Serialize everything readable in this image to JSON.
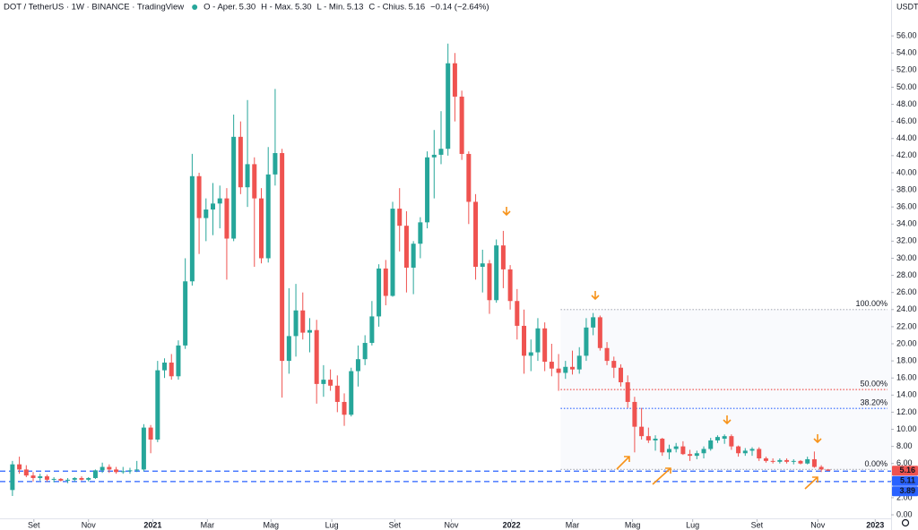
{
  "header": {
    "symbol": "DOT / TetherUS · 1W · BINANCE · TradingView",
    "legend": [
      {
        "label": "O - Aper.",
        "value": "5.30"
      },
      {
        "label": "H - Max.",
        "value": "5.30"
      },
      {
        "label": "L - Min.",
        "value": "5.13"
      },
      {
        "label": "C - Chius.",
        "value": "5.16"
      }
    ],
    "change": "−0.14 (−2.64%)"
  },
  "chart_data": {
    "type": "candlestick",
    "up_color": "#26a69a",
    "down_color": "#ef5350",
    "grid": false,
    "y_unit": "USDT",
    "open": [
      2.9,
      5.9,
      5.3,
      4.6,
      4.3,
      4.5,
      4.1,
      4.2,
      4.0,
      4.1,
      4.3,
      4.1,
      4.3,
      5.2,
      5.6,
      5.3,
      5.0,
      5.1,
      5.2,
      5.3,
      10.2,
      8.8,
      16.9,
      17.8,
      16.2,
      19.8,
      27.3,
      39.6,
      34.7,
      35.7,
      36.4,
      37.0,
      32.3,
      44.2,
      38.3,
      41.0,
      37.0,
      30.0,
      39.8,
      42.3,
      18.0,
      20.9,
      23.9,
      21.3,
      21.6,
      15.3,
      15.8,
      15.1,
      13.2,
      11.7,
      16.8,
      18.2,
      20.1,
      23.2,
      28.8,
      25.6,
      35.8,
      33.8,
      28.9,
      31.7,
      34.2,
      41.8,
      42.1,
      42.8,
      52.8,
      48.9,
      42.2,
      36.6,
      29.0,
      29.4,
      25.1,
      31.5,
      28.7,
      25.0,
      22.1,
      18.6,
      19.0,
      21.8,
      17.9,
      17.1,
      16.6,
      17.3,
      17.0,
      18.6,
      21.9,
      23.1,
      19.5,
      18.0,
      17.2,
      15.5,
      13.2,
      10.3,
      9.2,
      8.7,
      8.9,
      7.3,
      7.7,
      8.0,
      7.1,
      6.9,
      7.2,
      7.7,
      8.7,
      8.9,
      9.2,
      8.0,
      7.2,
      7.5,
      7.7,
      6.6,
      6.3,
      6.2,
      6.4,
      6.2,
      6.3,
      6.0,
      6.5,
      5.6,
      5.3
    ],
    "high": [
      6.3,
      6.8,
      5.8,
      5.0,
      4.8,
      4.7,
      4.4,
      4.3,
      4.3,
      4.4,
      4.5,
      4.4,
      5.3,
      6.1,
      5.9,
      5.6,
      5.6,
      5.5,
      6.3,
      10.6,
      10.5,
      18.0,
      18.3,
      18.8,
      20.4,
      30.0,
      42.2,
      40.0,
      37.0,
      38.8,
      38.5,
      38.2,
      46.8,
      46.0,
      48.5,
      41.8,
      38.2,
      43.0,
      49.8,
      42.8,
      26.5,
      27.0,
      26.0,
      23.0,
      22.8,
      17.5,
      17.0,
      16.3,
      14.2,
      17.2,
      19.8,
      21.0,
      25.0,
      29.3,
      29.8,
      36.6,
      38.2,
      35.5,
      32.0,
      34.8,
      42.5,
      45.0,
      47.2,
      55.1,
      54.0,
      49.6,
      42.5,
      37.5,
      31.0,
      29.8,
      32.2,
      33.2,
      29.2,
      26.4,
      24.0,
      20.5,
      23.0,
      22.5,
      20.0,
      18.8,
      18.0,
      19.2,
      19.6,
      23.0,
      23.6,
      23.3,
      20.2,
      18.5,
      17.6,
      16.3,
      13.8,
      12.5,
      10.2,
      9.3,
      9.0,
      8.2,
      8.4,
      8.6,
      7.6,
      7.5,
      8.0,
      9.0,
      9.3,
      9.4,
      9.4,
      8.1,
      7.8,
      7.9,
      7.9,
      6.8,
      6.6,
      6.6,
      6.6,
      6.5,
      6.4,
      6.8,
      7.4,
      5.8,
      5.3
    ],
    "low": [
      2.2,
      4.8,
      4.4,
      3.9,
      4.0,
      3.9,
      3.8,
      3.9,
      3.7,
      3.9,
      4.0,
      3.9,
      4.2,
      4.9,
      4.9,
      4.8,
      4.8,
      4.8,
      5.0,
      5.1,
      7.2,
      8.5,
      16.0,
      15.8,
      15.8,
      19.4,
      26.8,
      30.5,
      32.0,
      32.7,
      33.5,
      27.5,
      32.0,
      37.5,
      36.0,
      29.0,
      29.4,
      29.5,
      38.5,
      13.7,
      16.5,
      18.5,
      20.5,
      19.0,
      13.0,
      13.8,
      14.5,
      12.0,
      10.4,
      11.5,
      15.0,
      17.5,
      19.8,
      22.0,
      24.5,
      25.5,
      30.8,
      26.0,
      25.8,
      30.0,
      33.5,
      37.0,
      41.0,
      42.0,
      46.0,
      41.5,
      34.0,
      27.5,
      26.0,
      23.5,
      24.8,
      26.5,
      24.0,
      20.5,
      16.5,
      16.8,
      18.0,
      16.8,
      16.2,
      14.5,
      15.9,
      16.4,
      16.5,
      18.0,
      21.0,
      19.2,
      17.5,
      16.0,
      15.0,
      12.5,
      7.3,
      8.8,
      8.4,
      7.5,
      6.9,
      6.5,
      7.3,
      7.0,
      6.3,
      6.5,
      6.6,
      7.5,
      8.4,
      8.3,
      7.6,
      6.8,
      6.9,
      6.9,
      6.3,
      6.1,
      6.0,
      6.0,
      6.0,
      5.9,
      5.9,
      5.9,
      5.5,
      5.0,
      5.13
    ],
    "close": [
      5.9,
      5.3,
      4.6,
      4.3,
      4.5,
      4.1,
      4.2,
      4.0,
      4.1,
      4.3,
      4.1,
      4.3,
      5.2,
      5.6,
      5.3,
      5.0,
      5.1,
      5.2,
      5.3,
      10.2,
      8.8,
      16.9,
      17.8,
      16.2,
      19.8,
      27.3,
      39.6,
      34.7,
      35.7,
      36.4,
      37.0,
      32.3,
      44.2,
      38.3,
      41.0,
      37.0,
      30.0,
      39.8,
      42.3,
      18.0,
      20.9,
      23.9,
      21.3,
      21.6,
      15.3,
      15.8,
      15.1,
      13.2,
      11.7,
      16.8,
      18.2,
      20.1,
      23.2,
      28.8,
      25.6,
      35.8,
      33.8,
      28.9,
      31.7,
      34.2,
      41.8,
      42.1,
      42.8,
      52.8,
      48.9,
      42.2,
      36.6,
      29.0,
      29.4,
      25.1,
      31.5,
      28.7,
      25.0,
      22.1,
      18.6,
      19.0,
      21.8,
      17.9,
      17.1,
      16.6,
      17.3,
      17.0,
      18.6,
      21.9,
      23.1,
      19.5,
      18.0,
      17.2,
      15.5,
      13.2,
      10.3,
      9.2,
      8.7,
      8.9,
      7.3,
      7.7,
      8.0,
      7.1,
      6.9,
      7.2,
      7.7,
      8.7,
      9.1,
      9.2,
      8.0,
      7.2,
      7.5,
      7.7,
      6.6,
      6.3,
      6.2,
      6.4,
      6.2,
      6.3,
      6.0,
      6.5,
      5.6,
      5.3,
      5.16
    ],
    "xlim": [
      -1.8,
      127.1
    ],
    "xticks": [
      {
        "value": 3.1,
        "label": "Set"
      },
      {
        "value": 11,
        "label": "Nov"
      },
      {
        "value": 20.3,
        "label": "2021"
      },
      {
        "value": 28.2,
        "label": "Mar"
      },
      {
        "value": 37.4,
        "label": "Mag"
      },
      {
        "value": 46.2,
        "label": "Lug"
      },
      {
        "value": 55.3,
        "label": "Set"
      },
      {
        "value": 63.5,
        "label": "Nov"
      },
      {
        "value": 72.2,
        "label": "2022"
      },
      {
        "value": 81,
        "label": "Mar"
      },
      {
        "value": 89.7,
        "label": "Mag"
      },
      {
        "value": 98.4,
        "label": "Lug"
      },
      {
        "value": 107.7,
        "label": "Set"
      },
      {
        "value": 116.5,
        "label": "Nov"
      },
      {
        "value": 124.8,
        "label": "2023"
      }
    ],
    "ylim": [
      -0.52,
      60.2
    ],
    "yticks": [
      {
        "value": 0,
        "label": "0.00"
      },
      {
        "value": 2,
        "label": "2.00"
      },
      {
        "value": 4,
        "label": "4.00"
      },
      {
        "value": 6,
        "label": "6.00"
      },
      {
        "value": 8,
        "label": "8.00"
      },
      {
        "value": 10,
        "label": "10.00"
      },
      {
        "value": 12,
        "label": "12.00"
      },
      {
        "value": 14,
        "label": "14.00"
      },
      {
        "value": 16,
        "label": "16.00"
      },
      {
        "value": 18,
        "label": "18.00"
      },
      {
        "value": 20,
        "label": "20.00"
      },
      {
        "value": 22,
        "label": "22.00"
      },
      {
        "value": 24,
        "label": "24.00"
      },
      {
        "value": 26,
        "label": "26.00"
      },
      {
        "value": 28,
        "label": "28.00"
      },
      {
        "value": 30,
        "label": "30.00"
      },
      {
        "value": 32,
        "label": "32.00"
      },
      {
        "value": 34,
        "label": "34.00"
      },
      {
        "value": 36,
        "label": "36.00"
      },
      {
        "value": 38,
        "label": "38.00"
      },
      {
        "value": 40,
        "label": "40.00"
      },
      {
        "value": 42,
        "label": "42.00"
      },
      {
        "value": 44,
        "label": "44.00"
      },
      {
        "value": 46,
        "label": "46.00"
      },
      {
        "value": 48,
        "label": "48.00"
      },
      {
        "value": 50,
        "label": "50.00"
      },
      {
        "value": 52,
        "label": "52.00"
      },
      {
        "value": 54,
        "label": "54.00"
      },
      {
        "value": 56,
        "label": "56.00"
      }
    ],
    "fib_start": 79.3,
    "fib_levels": [
      {
        "value": 24.0,
        "label": "100.00%",
        "color": "#b2b5be"
      },
      {
        "value": 14.65,
        "label": "50.00%",
        "color": "#ef5350"
      },
      {
        "value": 12.44,
        "label": "38.20%",
        "color": "#2962ff"
      },
      {
        "value": 5.3,
        "label": "0.00%",
        "color": "#b2b5be"
      }
    ],
    "horizontal_lines": [
      {
        "value": 5.11,
        "label": "5.11",
        "color": "#2962ff"
      },
      {
        "value": 3.89,
        "label": "3.89",
        "color": "#2962ff"
      }
    ]
  }
}
